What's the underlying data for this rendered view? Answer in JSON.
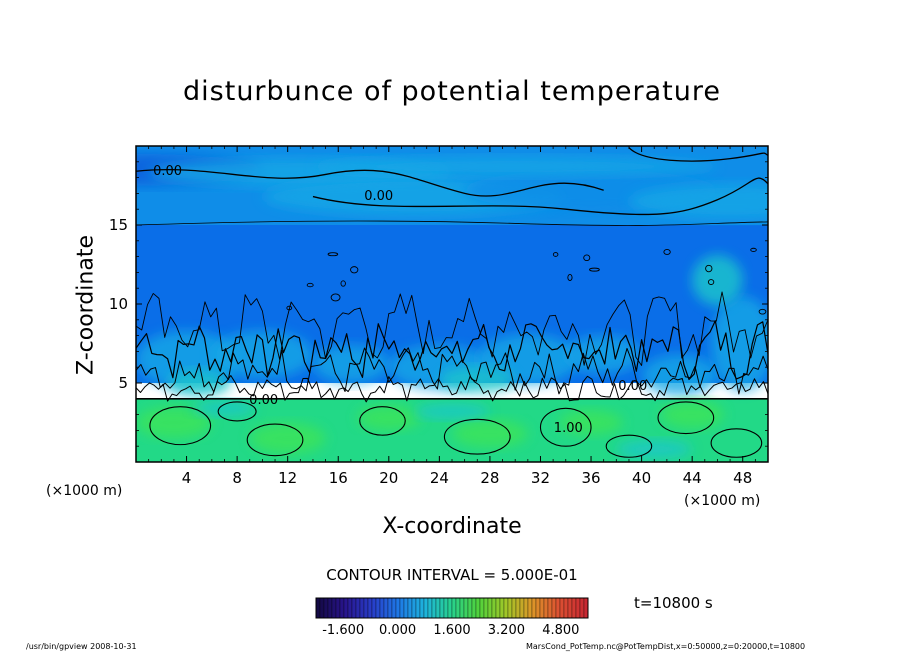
{
  "chart_data": {
    "type": "heatmap",
    "title": "disturbunce of potential temperature",
    "xlabel": "X-coordinate",
    "ylabel": "Z-coordinate",
    "x_unit_left": "(×1000 m)",
    "x_unit_right": "(×1000 m)",
    "xlim": [
      0,
      50
    ],
    "ylim": [
      0,
      20
    ],
    "x_ticks": [
      "4",
      "8",
      "12",
      "16",
      "20",
      "24",
      "28",
      "32",
      "36",
      "40",
      "44",
      "48"
    ],
    "x_tick_values": [
      4,
      8,
      12,
      16,
      20,
      24,
      28,
      32,
      36,
      40,
      44,
      48
    ],
    "y_ticks": [
      "5",
      "10",
      "15"
    ],
    "y_tick_values": [
      5,
      10,
      15
    ],
    "contour_interval": "CONTOUR INTERVAL = 5.000E-01",
    "time_label": "t=10800 s",
    "colorbar": {
      "tick_labels": [
        "-1.600",
        "0.000",
        "1.600",
        "3.200",
        "4.800"
      ],
      "tick_values": [
        -1.6,
        0.0,
        1.6,
        3.2,
        4.8
      ],
      "range": [
        -2.4,
        5.6
      ]
    },
    "contour_labels": [
      {
        "text": "0.00",
        "x": 2.5,
        "z": 18.3
      },
      {
        "text": "0.00",
        "x": 19.2,
        "z": 16.7
      },
      {
        "text": "0.00",
        "x": 10.1,
        "z": 3.8
      },
      {
        "text": "0.00",
        "x": 39.3,
        "z": 4.7
      },
      {
        "text": "1.00",
        "x": 34.2,
        "z": 2.0
      }
    ],
    "bands": {
      "upper_weak_negative_z": [
        15,
        19
      ],
      "mid_negative_z": [
        5,
        15
      ],
      "boundary_layer_z": [
        4.5,
        8
      ],
      "lower_positive_z": [
        0,
        4
      ]
    },
    "colors": {
      "upper": "#0f8de8",
      "cool_blob": "#0e5cdc",
      "mid": "#0a6ee8",
      "light_blue": "#17a8e6",
      "lower": "#22d987",
      "bright_green": "#3ee458",
      "cyan": "#1cc7cb"
    }
  },
  "footer": {
    "left": "/usr/bin/gpview   2008-10-31",
    "right": "MarsCond_PotTemp.nc@PotTempDist,x=0:50000,z=0:20000,t=10800"
  }
}
